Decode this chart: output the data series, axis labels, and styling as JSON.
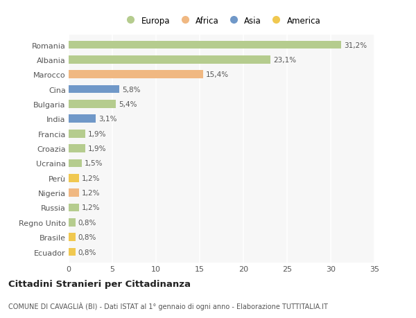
{
  "categories": [
    "Romania",
    "Albania",
    "Marocco",
    "Cina",
    "Bulgaria",
    "India",
    "Francia",
    "Croazia",
    "Ucraina",
    "Perù",
    "Nigeria",
    "Russia",
    "Regno Unito",
    "Brasile",
    "Ecuador"
  ],
  "values": [
    31.2,
    23.1,
    15.4,
    5.8,
    5.4,
    3.1,
    1.9,
    1.9,
    1.5,
    1.2,
    1.2,
    1.2,
    0.8,
    0.8,
    0.8
  ],
  "labels": [
    "31,2%",
    "23,1%",
    "15,4%",
    "5,8%",
    "5,4%",
    "3,1%",
    "1,9%",
    "1,9%",
    "1,5%",
    "1,2%",
    "1,2%",
    "1,2%",
    "0,8%",
    "0,8%",
    "0,8%"
  ],
  "continents": [
    "Europa",
    "Europa",
    "Africa",
    "Asia",
    "Europa",
    "Asia",
    "Europa",
    "Europa",
    "Europa",
    "America",
    "Africa",
    "Europa",
    "Europa",
    "America",
    "America"
  ],
  "colors": {
    "Europa": "#b5cc8e",
    "Africa": "#f0b882",
    "Asia": "#7098c8",
    "America": "#f0c850"
  },
  "title": "Cittadini Stranieri per Cittadinanza",
  "subtitle": "COMUNE DI CAVAGLIÀ (BI) - Dati ISTAT al 1° gennaio di ogni anno - Elaborazione TUTTITALIA.IT",
  "xlim": [
    0,
    35
  ],
  "xticks": [
    0,
    5,
    10,
    15,
    20,
    25,
    30,
    35
  ],
  "background_color": "#ffffff",
  "plot_bg_color": "#f7f7f7",
  "grid_color": "#ffffff",
  "bar_height": 0.55,
  "legend_entries": [
    "Europa",
    "Africa",
    "Asia",
    "America"
  ]
}
